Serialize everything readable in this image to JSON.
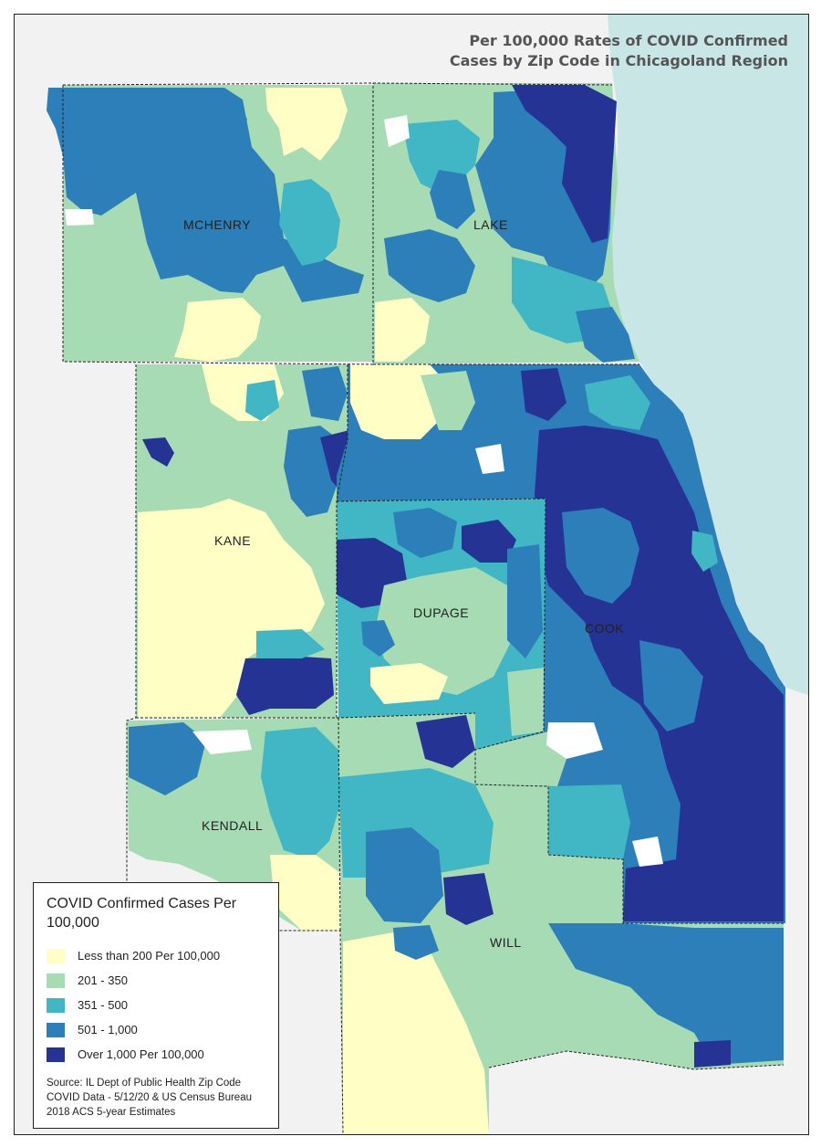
{
  "title": {
    "line1": "Per 100,000 Rates of COVID Confirmed",
    "line2": "Cases by Zip Code in Chicagoland Region"
  },
  "counties": [
    {
      "name": "MCHENRY"
    },
    {
      "name": "LAKE"
    },
    {
      "name": "KANE"
    },
    {
      "name": "DUPAGE"
    },
    {
      "name": "COOK"
    },
    {
      "name": "KENDALL"
    },
    {
      "name": "WILL"
    }
  ],
  "legend": {
    "title": "COVID Confirmed Cases Per 100,000",
    "classes": [
      {
        "label": "Less than 200 Per 100,000",
        "color": "#ffffc5"
      },
      {
        "label": "201 - 350",
        "color": "#a6dbb4"
      },
      {
        "label": "351 - 500",
        "color": "#41b6c4"
      },
      {
        "label": "501 - 1,000",
        "color": "#2c7fb8"
      },
      {
        "label": "Over 1,000 Per 100,000",
        "color": "#253494"
      }
    ]
  },
  "source": "Source: IL Dept of Public Health Zip Code COVID Data - 5/12/20 & US Census Bureau 2018 ACS 5-year Estimates",
  "colors": {
    "lake_michigan": "#c9e6e7",
    "background": "#f2f2f2",
    "county_border": "#222222"
  }
}
